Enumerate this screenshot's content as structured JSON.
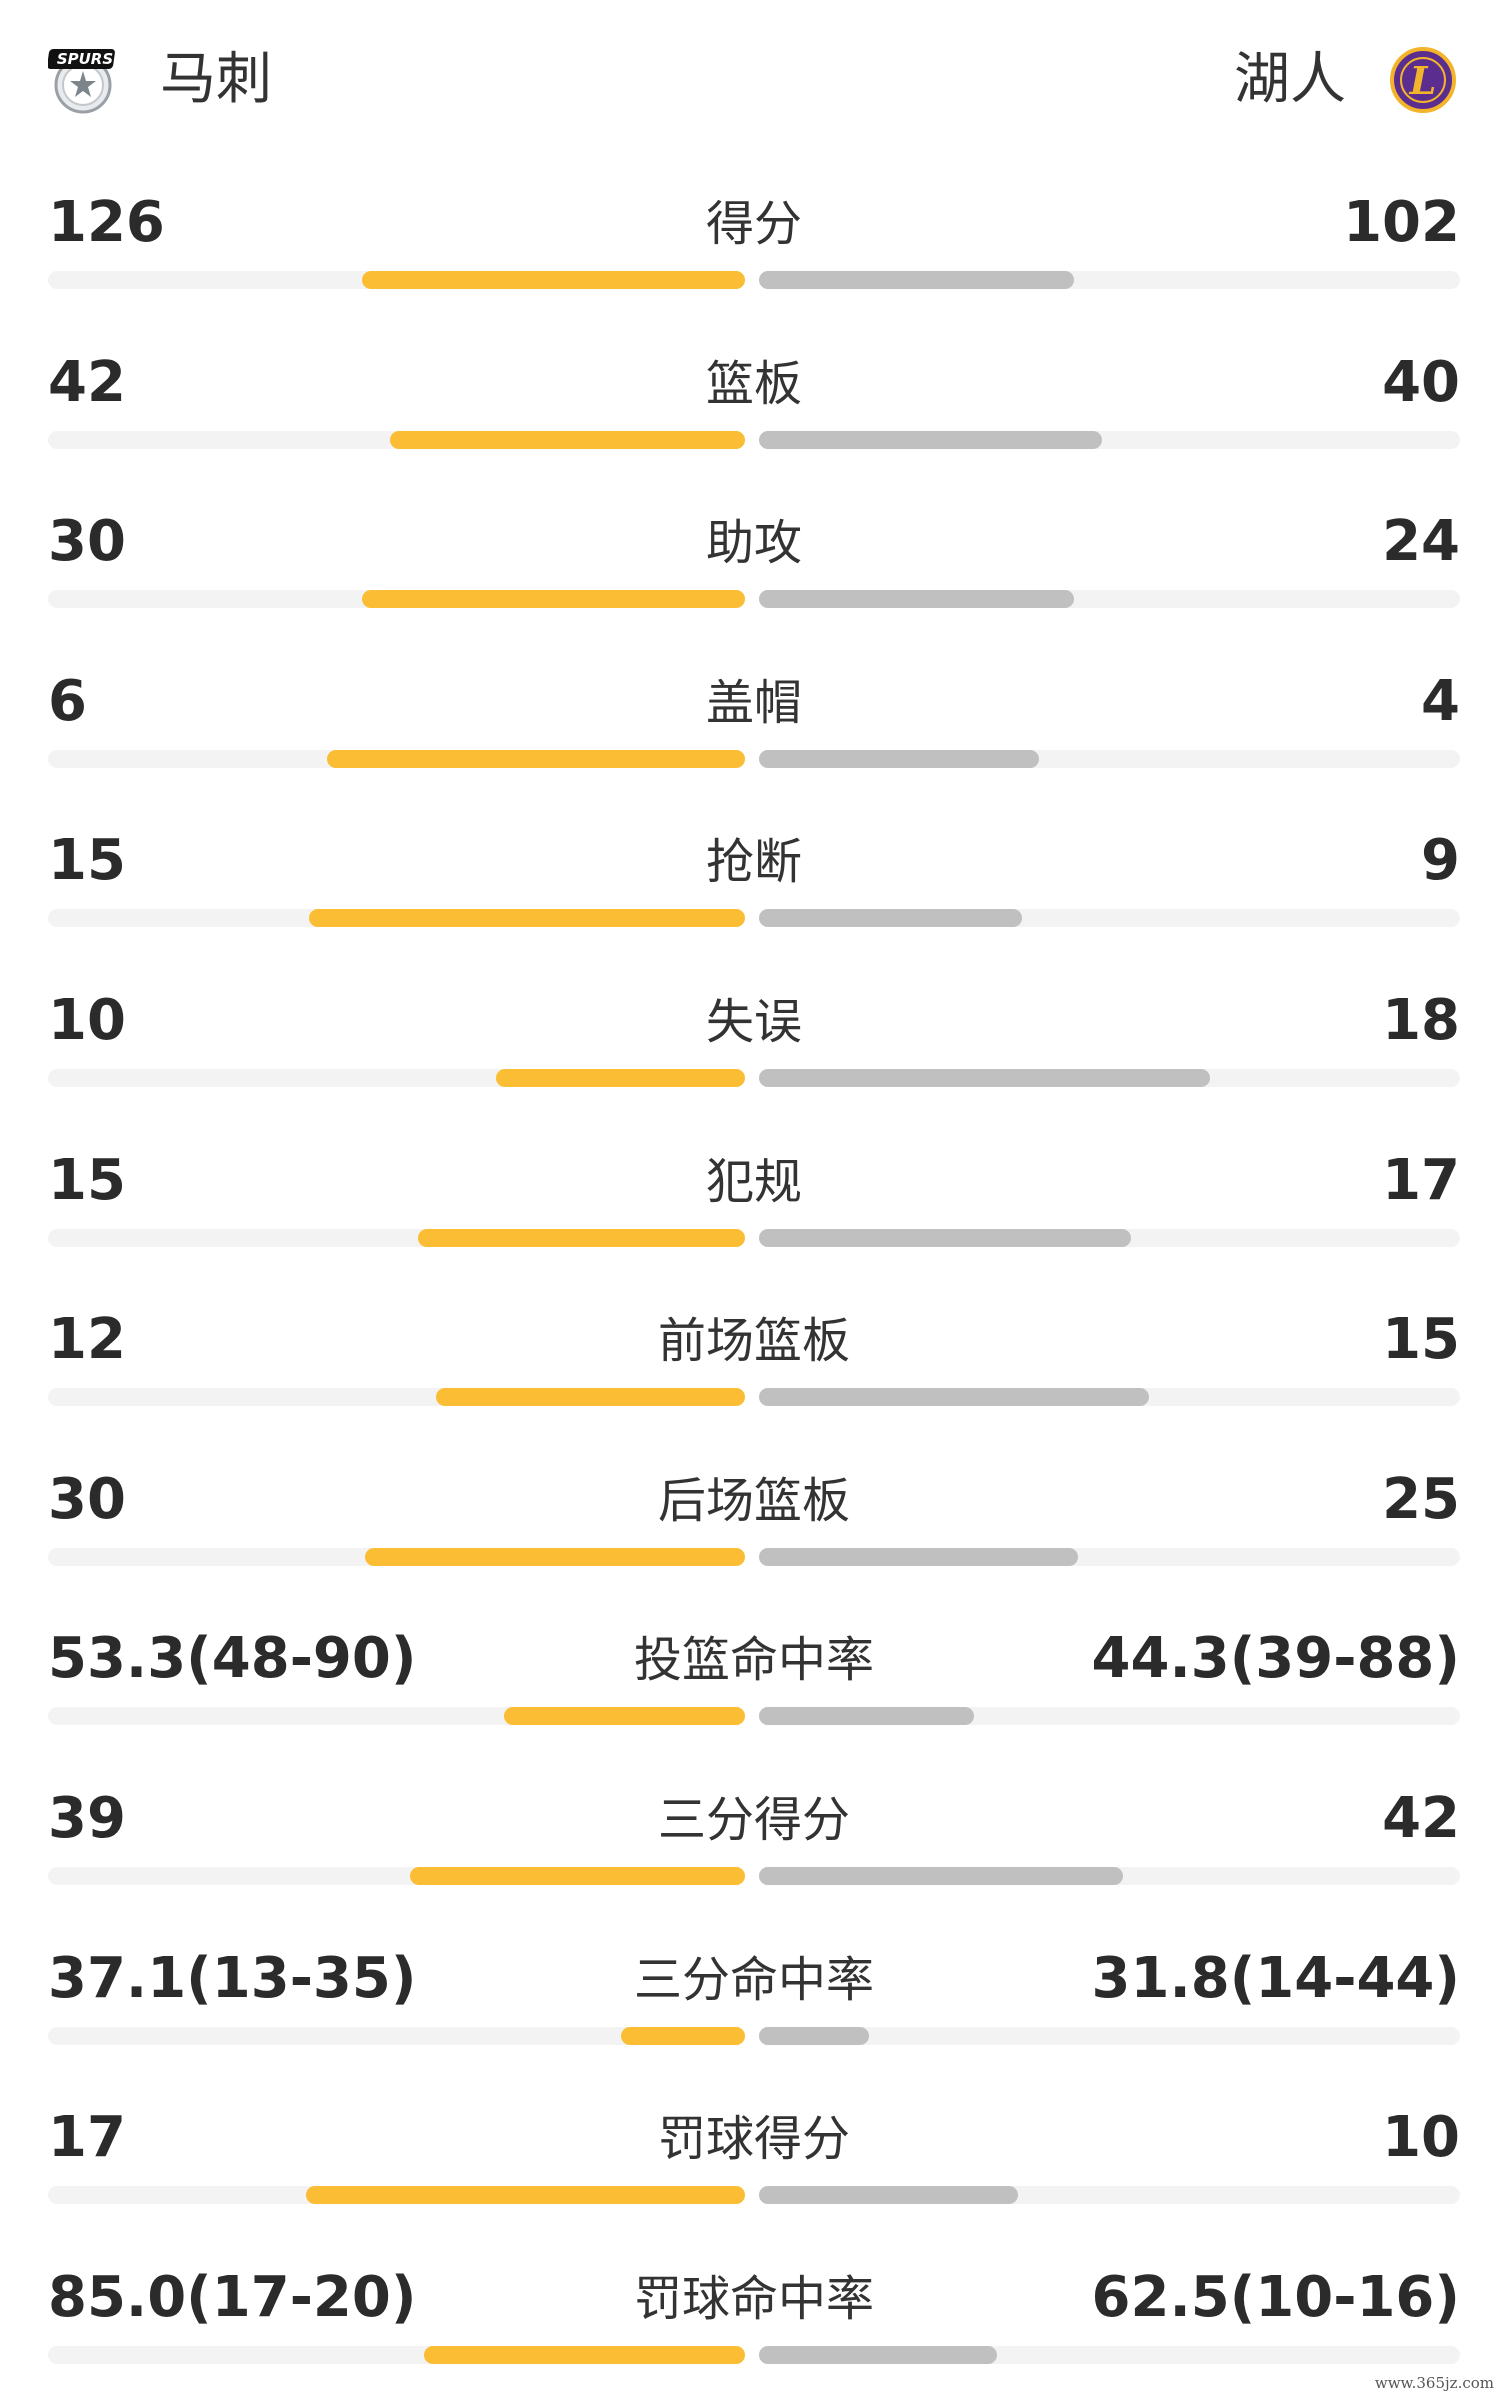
{
  "teams": {
    "home": {
      "name": "马刺",
      "logo_text": "SPURS",
      "color": "#fbbd33"
    },
    "away": {
      "name": "湖人",
      "logo_text": "L",
      "color": "#c0c0c0"
    }
  },
  "stats": [
    {
      "label": "得分",
      "home": "126",
      "away": "102",
      "home_bar": 0.55,
      "away_bar": 0.45
    },
    {
      "label": "篮板",
      "home": "42",
      "away": "40",
      "home_bar": 0.51,
      "away_bar": 0.49
    },
    {
      "label": "助攻",
      "home": "30",
      "away": "24",
      "home_bar": 0.55,
      "away_bar": 0.45
    },
    {
      "label": "盖帽",
      "home": "6",
      "away": "4",
      "home_bar": 0.6,
      "away_bar": 0.4
    },
    {
      "label": "抢断",
      "home": "15",
      "away": "9",
      "home_bar": 0.625,
      "away_bar": 0.375
    },
    {
      "label": "失误",
      "home": "10",
      "away": "18",
      "home_bar": 0.357,
      "away_bar": 0.643
    },
    {
      "label": "犯规",
      "home": "15",
      "away": "17",
      "home_bar": 0.469,
      "away_bar": 0.531
    },
    {
      "label": "前场篮板",
      "home": "12",
      "away": "15",
      "home_bar": 0.444,
      "away_bar": 0.556
    },
    {
      "label": "后场篮板",
      "home": "30",
      "away": "25",
      "home_bar": 0.545,
      "away_bar": 0.455
    },
    {
      "label": "投篮命中率",
      "home": "53.3(48-90)",
      "away": "44.3(39-88)",
      "home_bar": 0.346,
      "away_bar": 0.306
    },
    {
      "label": "三分得分",
      "home": "39",
      "away": "42",
      "home_bar": 0.481,
      "away_bar": 0.519
    },
    {
      "label": "三分命中率",
      "home": "37.1(13-35)",
      "away": "31.8(14-44)",
      "home_bar": 0.178,
      "away_bar": 0.157
    },
    {
      "label": "罚球得分",
      "home": "17",
      "away": "10",
      "home_bar": 0.63,
      "away_bar": 0.37
    },
    {
      "label": "罚球命中率",
      "home": "85.0(17-20)",
      "away": "62.5(10-16)",
      "home_bar": 0.46,
      "away_bar": 0.339
    }
  ],
  "watermark": "www.365jz.com"
}
